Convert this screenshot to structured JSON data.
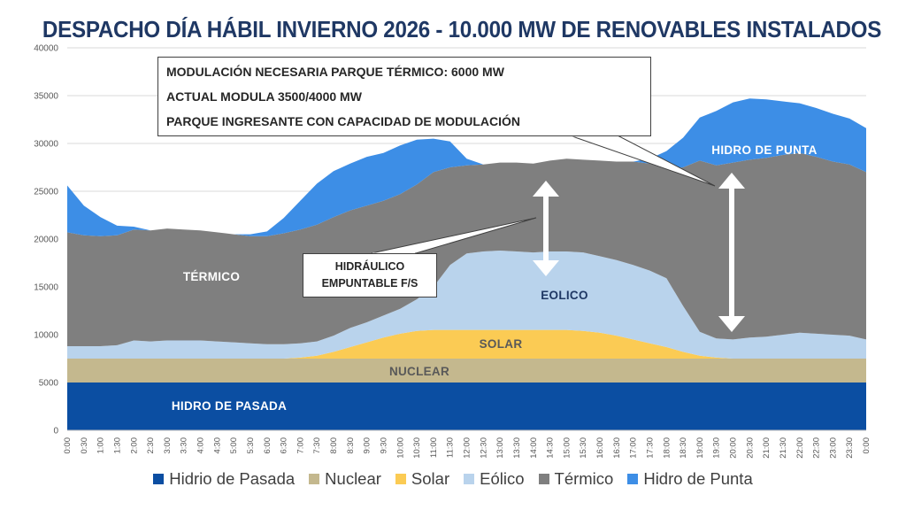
{
  "title": "DESPACHO DÍA HÁBIL INVIERNO 2026 - 10.000 MW DE RENOVABLES INSTALADOS",
  "colors": {
    "hidro_pasada": "#0b4ea2",
    "nuclear": "#c4b88e",
    "solar": "#fbcb54",
    "eolico": "#b9d3ec",
    "termico": "#7f7f7f",
    "hidro_punta": "#3d8ee6"
  },
  "area_labels": {
    "hidro_pasada": "HIDRO DE PASADA",
    "nuclear": "NUCLEAR",
    "solar": "SOLAR",
    "eolico": "EOLICO",
    "termico": "TÉRMICO",
    "hidro_punta": "HIDRO DE PUNTA"
  },
  "callouts": {
    "top": [
      "MODULACIÓN NECESARIA PARQUE TÉRMICO: 6000 MW",
      "ACTUAL MODULA 3500/4000 MW",
      "PARQUE INGRESANTE CON CAPACIDAD DE MODULACIÓN"
    ],
    "mid": [
      "HIDRÁULICO",
      "EMPUNTABLE F/S"
    ]
  },
  "legend": [
    "Hidrio de Pasada",
    "Nuclear",
    "Solar",
    "Eólico",
    "Térmico",
    "Hidro de Punta"
  ],
  "chart_data": {
    "type": "area",
    "stacked": true,
    "title": "DESPACHO DÍA HÁBIL INVIERNO 2026 - 10.000 MW DE RENOVABLES INSTALADOS",
    "ylim": [
      0,
      40000
    ],
    "yticks": [
      0,
      5000,
      10000,
      15000,
      20000,
      25000,
      30000,
      35000,
      40000
    ],
    "grid": true,
    "legend_position": "bottom",
    "x": [
      "0:00",
      "0:30",
      "1:00",
      "1:30",
      "2:00",
      "2:30",
      "3:00",
      "3:30",
      "4:00",
      "4:30",
      "5:00",
      "5:30",
      "6:00",
      "6:30",
      "7:00",
      "7:30",
      "8:00",
      "8:30",
      "9:00",
      "9:30",
      "10:00",
      "10:30",
      "11:00",
      "11:30",
      "12:00",
      "12:30",
      "13:00",
      "13:30",
      "14:00",
      "14:30",
      "15:00",
      "15:30",
      "16:00",
      "16:30",
      "17:00",
      "17:30",
      "18:00",
      "18:30",
      "19:00",
      "19:30",
      "20:00",
      "20:30",
      "21:00",
      "21:30",
      "22:00",
      "22:30",
      "23:00",
      "23:30",
      "0:00"
    ],
    "series": [
      {
        "name": "Hidrio de Pasada",
        "values": [
          5000,
          5000,
          5000,
          5000,
          5000,
          5000,
          5000,
          5000,
          5000,
          5000,
          5000,
          5000,
          5000,
          5000,
          5000,
          5000,
          5000,
          5000,
          5000,
          5000,
          5000,
          5000,
          5000,
          5000,
          5000,
          5000,
          5000,
          5000,
          5000,
          5000,
          5000,
          5000,
          5000,
          5000,
          5000,
          5000,
          5000,
          5000,
          5000,
          5000,
          5000,
          5000,
          5000,
          5000,
          5000,
          5000,
          5000,
          5000,
          5000
        ]
      },
      {
        "name": "Nuclear",
        "values": [
          2500,
          2500,
          2500,
          2500,
          2500,
          2500,
          2500,
          2500,
          2500,
          2500,
          2500,
          2500,
          2500,
          2500,
          2500,
          2500,
          2500,
          2500,
          2500,
          2500,
          2500,
          2500,
          2500,
          2500,
          2500,
          2500,
          2500,
          2500,
          2500,
          2500,
          2500,
          2500,
          2500,
          2500,
          2500,
          2500,
          2500,
          2500,
          2500,
          2500,
          2500,
          2500,
          2500,
          2500,
          2500,
          2500,
          2500,
          2500,
          2500
        ]
      },
      {
        "name": "Solar",
        "values": [
          0,
          0,
          0,
          0,
          0,
          0,
          0,
          0,
          0,
          0,
          0,
          0,
          0,
          0,
          100,
          300,
          700,
          1200,
          1700,
          2200,
          2600,
          2900,
          3000,
          3000,
          3000,
          3000,
          3000,
          3000,
          3000,
          3000,
          3000,
          2900,
          2700,
          2400,
          2000,
          1600,
          1200,
          700,
          300,
          100,
          0,
          0,
          0,
          0,
          0,
          0,
          0,
          0,
          0
        ]
      },
      {
        "name": "Eólico",
        "values": [
          1300,
          1300,
          1300,
          1400,
          1900,
          1800,
          1900,
          1900,
          1900,
          1800,
          1700,
          1600,
          1500,
          1500,
          1500,
          1500,
          1700,
          2000,
          2100,
          2300,
          2600,
          3300,
          4500,
          6800,
          8000,
          8200,
          8300,
          8200,
          8100,
          8200,
          8200,
          8200,
          8000,
          7900,
          7800,
          7600,
          7200,
          4800,
          2500,
          2000,
          2000,
          2200,
          2300,
          2500,
          2700,
          2600,
          2500,
          2400,
          2000
        ]
      },
      {
        "name": "Térmico",
        "values": [
          11900,
          11600,
          11500,
          11500,
          11600,
          11600,
          11700,
          11600,
          11500,
          11400,
          11300,
          11200,
          11300,
          11600,
          11900,
          12200,
          12400,
          12300,
          12200,
          12000,
          12000,
          12000,
          12000,
          10200,
          9200,
          9100,
          9200,
          9300,
          9300,
          9500,
          9700,
          9700,
          10000,
          10300,
          10800,
          11200,
          11400,
          14500,
          17900,
          18100,
          18500,
          18600,
          18700,
          18800,
          18800,
          18500,
          18100,
          17900,
          17500
        ]
      },
      {
        "name": "Hidro de Punta",
        "values": [
          4900,
          3100,
          2000,
          1000,
          300,
          0,
          0,
          0,
          0,
          0,
          0,
          200,
          500,
          1600,
          3000,
          4300,
          4800,
          4900,
          5100,
          5000,
          5100,
          4700,
          3500,
          2700,
          700,
          0,
          0,
          0,
          0,
          0,
          0,
          0,
          0,
          0,
          0,
          500,
          1900,
          3100,
          4500,
          5700,
          6300,
          6400,
          6100,
          5600,
          5200,
          5100,
          5000,
          4800,
          4600
        ]
      }
    ]
  }
}
